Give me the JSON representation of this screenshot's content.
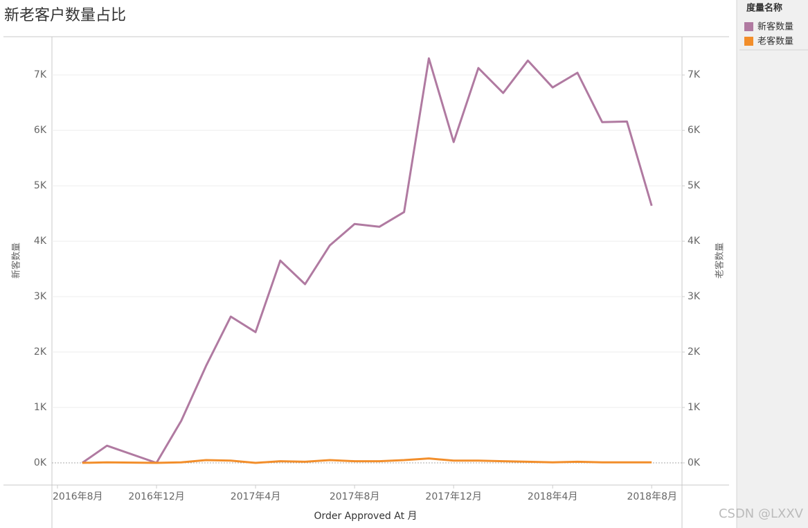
{
  "chart_data": {
    "type": "line",
    "title": "新老客户数量占比",
    "x_label": "Order Approved At 月",
    "y_label": "新客数量",
    "y2_label": "老客数量",
    "legend_title": "度量名称",
    "legend_position": "right",
    "watermark": "CSDN @LXXV",
    "grid": true,
    "x": [
      "2016-09",
      "2016-10",
      "2016-12",
      "2017-01",
      "2017-02",
      "2017-03",
      "2017-04",
      "2017-05",
      "2017-06",
      "2017-07",
      "2017-08",
      "2017-09",
      "2017-10",
      "2017-11",
      "2017-12",
      "2018-01",
      "2018-02",
      "2018-03",
      "2018-04",
      "2018-05",
      "2018-06",
      "2018-07",
      "2018-08"
    ],
    "xlim": [
      "2016-08",
      "2018-09"
    ],
    "xticks": [
      {
        "value": "2016-08",
        "label": "2016年8月"
      },
      {
        "value": "2016-12",
        "label": "2016年12月"
      },
      {
        "value": "2017-04",
        "label": "2017年4月"
      },
      {
        "value": "2017-08",
        "label": "2017年8月"
      },
      {
        "value": "2017-12",
        "label": "2017年12月"
      },
      {
        "value": "2018-04",
        "label": "2018年4月"
      },
      {
        "value": "2018-08",
        "label": "2018年8月"
      }
    ],
    "ylim": [
      -400,
      7690
    ],
    "yticks": [
      {
        "value": 0,
        "label": "0K"
      },
      {
        "value": 1000,
        "label": "1K"
      },
      {
        "value": 2000,
        "label": "2K"
      },
      {
        "value": 3000,
        "label": "3K"
      },
      {
        "value": 4000,
        "label": "4K"
      },
      {
        "value": 5000,
        "label": "5K"
      },
      {
        "value": 6000,
        "label": "6K"
      },
      {
        "value": 7000,
        "label": "7K"
      }
    ],
    "y2lim": [
      -400,
      7690
    ],
    "y2ticks": [
      {
        "value": 0,
        "label": "0K"
      },
      {
        "value": 1000,
        "label": "1K"
      },
      {
        "value": 2000,
        "label": "2K"
      },
      {
        "value": 3000,
        "label": "3K"
      },
      {
        "value": 4000,
        "label": "4K"
      },
      {
        "value": 5000,
        "label": "5K"
      },
      {
        "value": 6000,
        "label": "6K"
      },
      {
        "value": 7000,
        "label": "7K"
      }
    ],
    "series": [
      {
        "name": "新客数量",
        "color": "#b07aa1",
        "values": [
          0,
          310,
          0,
          760,
          1750,
          2640,
          2360,
          3650,
          3225,
          3925,
          4310,
          4260,
          4525,
          7300,
          5790,
          7125,
          6675,
          7260,
          6775,
          7040,
          6150,
          6160,
          4640
        ]
      },
      {
        "name": "老客数量",
        "color": "#f28e2b",
        "axis": "y2",
        "values": [
          0,
          10,
          0,
          10,
          50,
          40,
          0,
          30,
          20,
          50,
          30,
          30,
          50,
          80,
          40,
          40,
          30,
          20,
          10,
          20,
          10,
          10,
          10
        ]
      }
    ]
  }
}
